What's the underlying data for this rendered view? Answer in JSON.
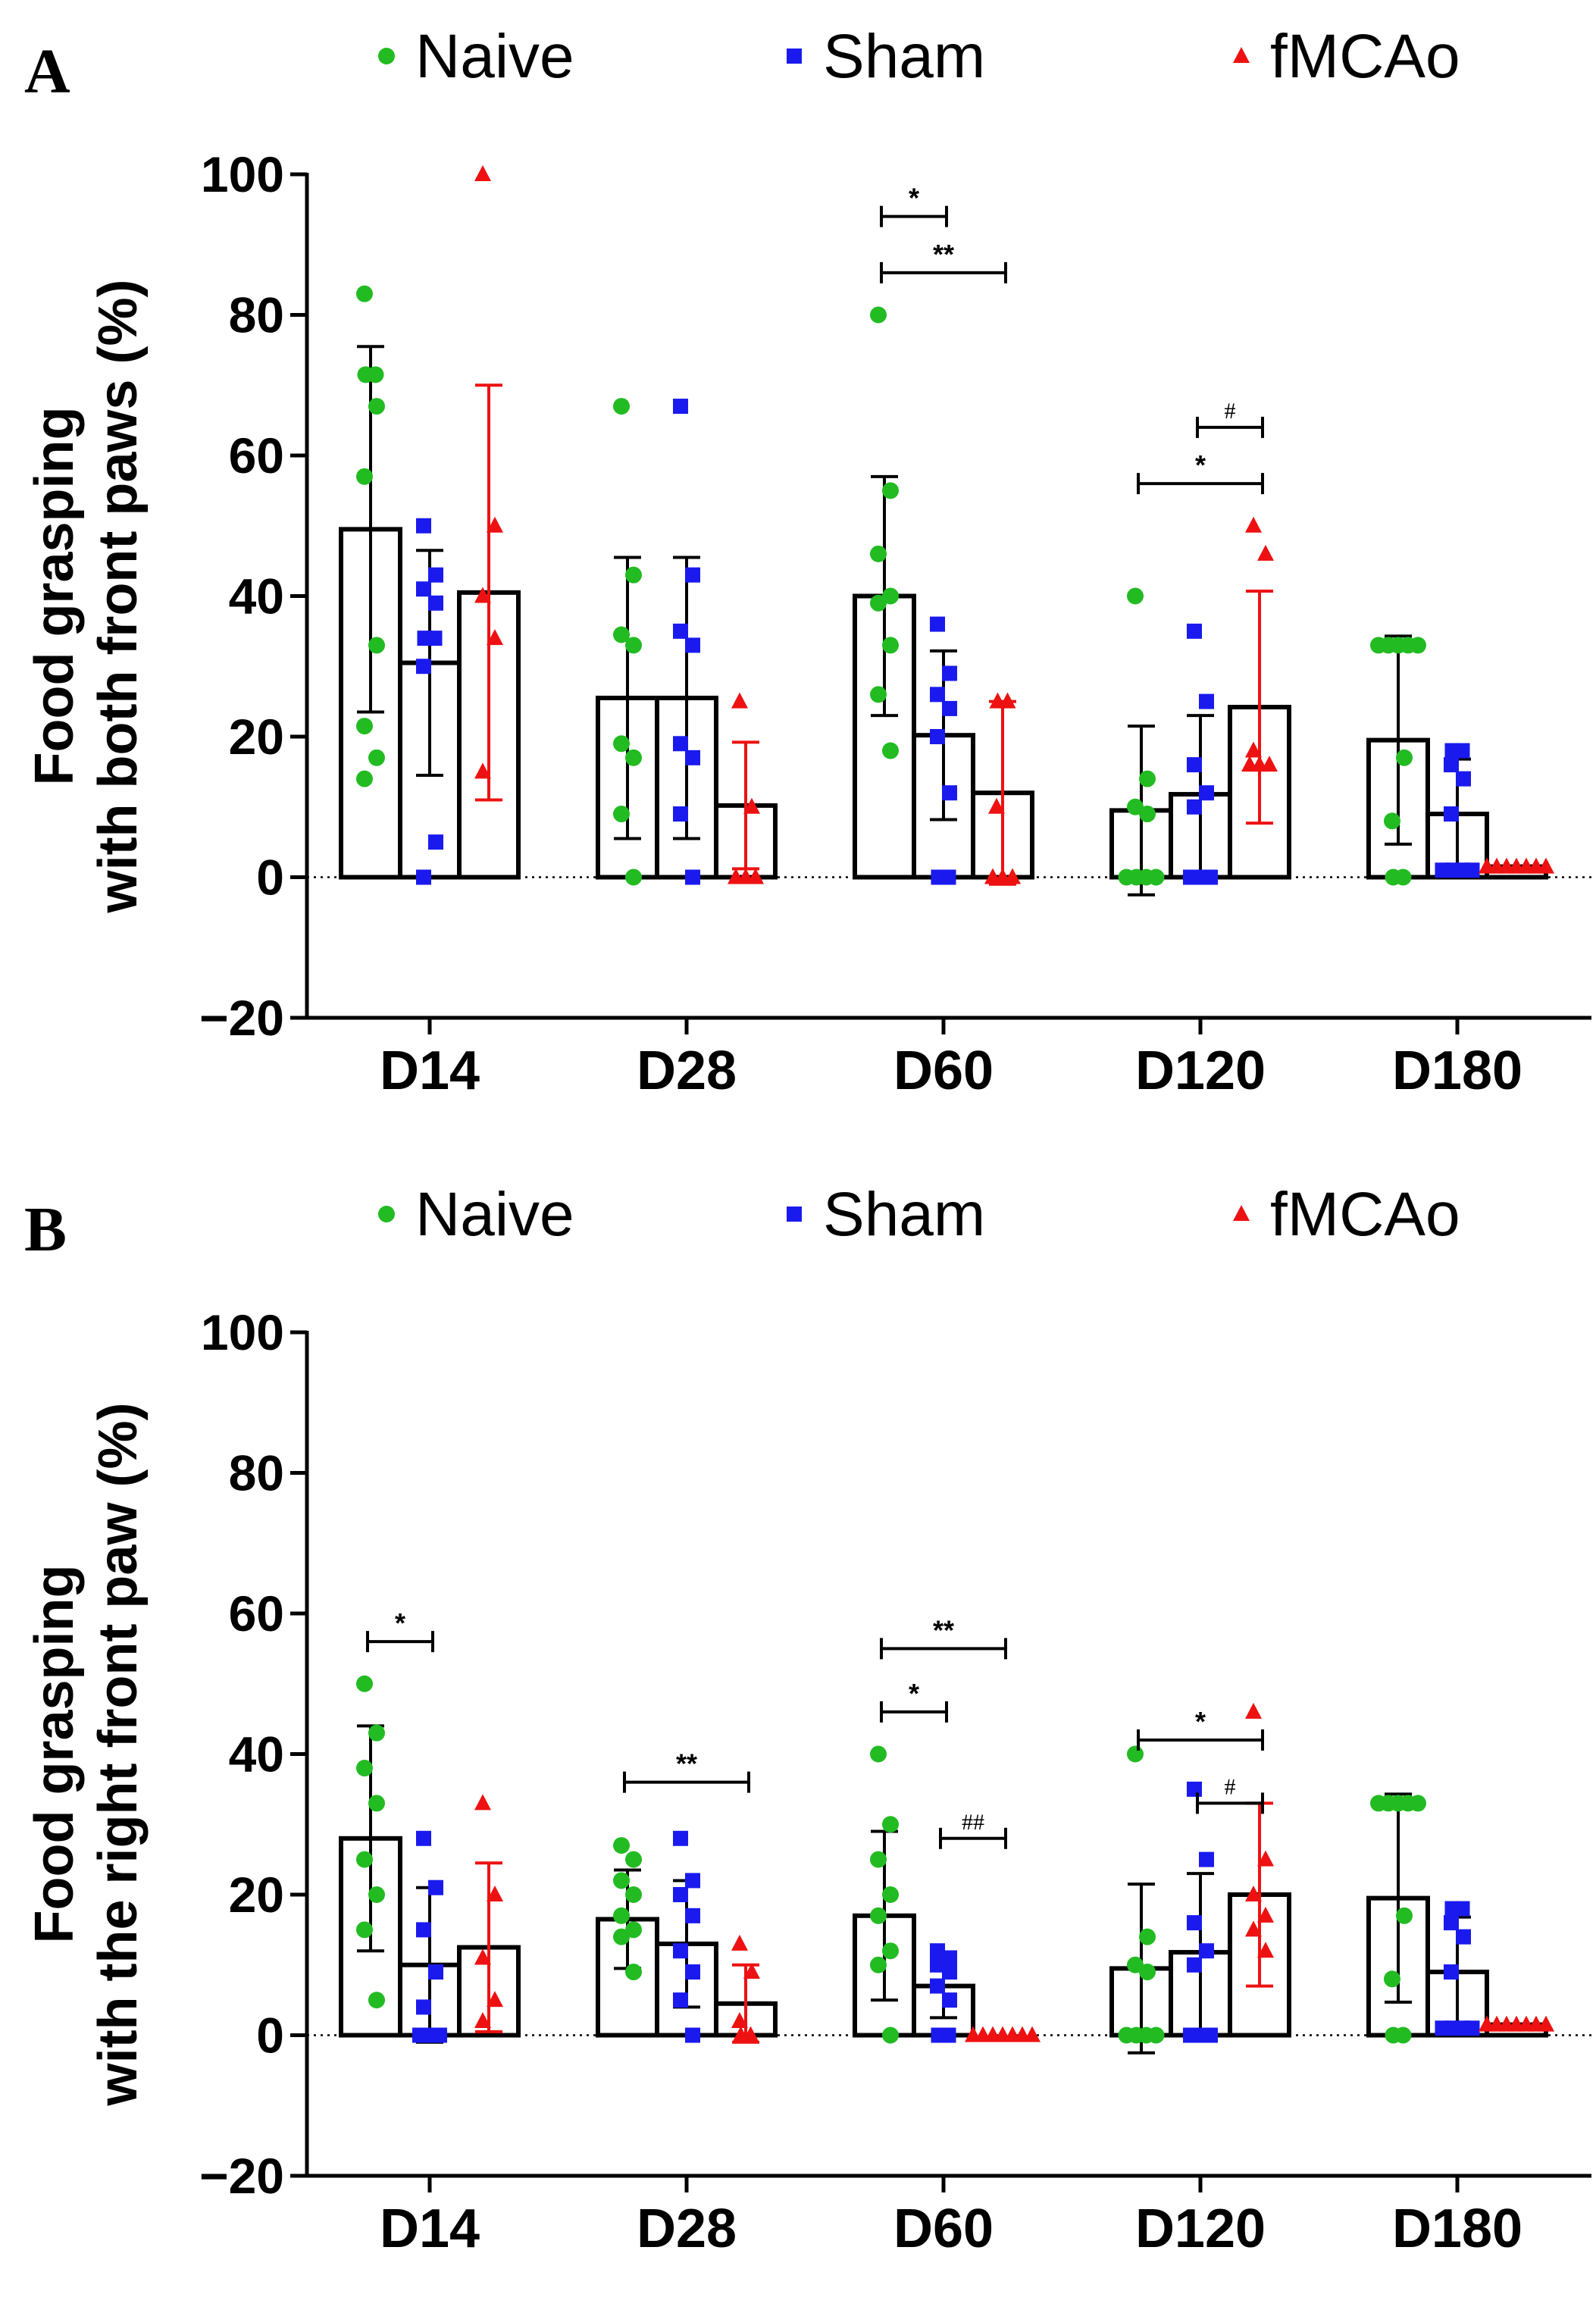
{
  "colors": {
    "naive": "#22bb22",
    "sham": "#1a1aee",
    "fmcao": "#ee1111",
    "axis": "#000000"
  },
  "legend": [
    {
      "name": "Naive",
      "color": "#22bb22",
      "marker": "circle"
    },
    {
      "name": "Sham",
      "color": "#1a1aee",
      "marker": "square"
    },
    {
      "name": "fMCAo",
      "color": "#ee1111",
      "marker": "triangle"
    }
  ],
  "chart_data": [
    {
      "panel_label": "A",
      "type": "bar",
      "title": "",
      "xlabel": "",
      "ylabel_line1": "Food grasping",
      "ylabel_line2": "with both front paws (%)",
      "ylim": [
        -20,
        100
      ],
      "yticks": [
        "100",
        "80",
        "60",
        "40",
        "20",
        "0",
        "−20"
      ],
      "ytick_values": [
        100,
        80,
        60,
        40,
        20,
        0,
        -20
      ],
      "categories": [
        "D14",
        "D28",
        "D60",
        "D120",
        "D180"
      ],
      "series": [
        {
          "name": "Naive",
          "means": [
            49.5,
            25.5,
            40,
            9.5,
            19.5
          ],
          "sd": [
            26,
            20,
            17,
            12,
            14.8
          ],
          "points": [
            [
              83,
              71.5,
              71.5,
              67,
              57,
              33,
              21.5,
              17,
              14
            ],
            [
              67,
              43,
              34.5,
              33,
              19,
              17,
              9,
              0
            ],
            [
              80,
              55,
              46,
              40,
              39,
              33,
              26,
              18
            ],
            [
              40,
              14,
              10,
              9,
              0,
              0,
              0,
              0
            ],
            [
              33,
              33,
              33,
              33,
              33,
              17,
              8,
              0,
              0
            ]
          ]
        },
        {
          "name": "Sham",
          "means": [
            30.5,
            25.5,
            20.2,
            11.8,
            9
          ],
          "sd": [
            16,
            20,
            12,
            11.2,
            7.8
          ],
          "points": [
            [
              50,
              43,
              41,
              39,
              34,
              34,
              30,
              5,
              0
            ],
            [
              67,
              43,
              35,
              33,
              19,
              17,
              9,
              0
            ],
            [
              36,
              29,
              26,
              24,
              20,
              12,
              0,
              0
            ],
            [
              35,
              25,
              16,
              12,
              10,
              0,
              0,
              0
            ],
            [
              18,
              18,
              16,
              14,
              9,
              1,
              1,
              1,
              1
            ]
          ]
        },
        {
          "name": "fMCAo",
          "means": [
            40.5,
            10.2,
            12,
            24.2,
            1.5
          ],
          "sd": [
            29.5,
            9,
            13,
            16.5,
            0
          ],
          "points": [
            [
              100,
              50,
              40,
              34,
              15
            ],
            [
              25,
              10,
              0,
              0,
              0
            ],
            [
              25,
              25,
              10,
              0,
              0,
              0
            ],
            [
              50,
              46,
              18,
              16,
              16,
              16
            ],
            [
              1.5,
              1.5,
              1.5,
              1.5,
              1.5,
              1.5,
              1.5
            ]
          ]
        }
      ],
      "significance": [
        {
          "group": "D60",
          "from": "Naive",
          "to": "Sham",
          "label": "*",
          "y": 94
        },
        {
          "group": "D60",
          "from": "Naive",
          "to": "fMCAo",
          "label": "**",
          "y": 86
        },
        {
          "group": "D120",
          "from": "Sham",
          "to": "fMCAo",
          "label": "#",
          "y": 64
        },
        {
          "group": "D120",
          "from": "Naive",
          "to": "fMCAo",
          "label": "*",
          "y": 56
        }
      ]
    },
    {
      "panel_label": "B",
      "type": "bar",
      "title": "",
      "xlabel": "",
      "ylabel_line1": "Food grasping",
      "ylabel_line2": "with the right front paw (%)",
      "ylim": [
        -20,
        100
      ],
      "yticks": [
        "100",
        "80",
        "60",
        "40",
        "20",
        "0",
        "−20"
      ],
      "ytick_values": [
        100,
        80,
        60,
        40,
        20,
        0,
        -20
      ],
      "categories": [
        "D14",
        "D28",
        "D60",
        "D120",
        "D180"
      ],
      "series": [
        {
          "name": "Naive",
          "means": [
            28,
            16.5,
            17,
            9.5,
            19.5
          ],
          "sd": [
            16,
            7,
            12,
            12,
            14.8
          ],
          "points": [
            [
              50,
              43,
              38,
              33,
              25,
              20,
              15,
              5
            ],
            [
              27,
              25,
              22,
              20,
              17,
              15,
              14,
              9
            ],
            [
              40,
              30,
              25,
              20,
              17,
              12,
              10,
              0
            ],
            [
              40,
              14,
              10,
              9,
              0,
              0,
              0,
              0
            ],
            [
              33,
              33,
              33,
              33,
              33,
              17,
              8,
              0,
              0
            ]
          ]
        },
        {
          "name": "Sham",
          "means": [
            10,
            13,
            7,
            11.8,
            9
          ],
          "sd": [
            11,
            9,
            4.5,
            11.2,
            7.8
          ],
          "points": [
            [
              28,
              21,
              15,
              9,
              4,
              0,
              0,
              0
            ],
            [
              28,
              22,
              20,
              17,
              12,
              9,
              5,
              0
            ],
            [
              12,
              11,
              10,
              9,
              7,
              5,
              0,
              0
            ],
            [
              35,
              25,
              16,
              12,
              10,
              0,
              0,
              0
            ],
            [
              18,
              18,
              16,
              14,
              9,
              1,
              1,
              1,
              1
            ]
          ]
        },
        {
          "name": "fMCAo",
          "means": [
            12.5,
            4.5,
            0,
            20,
            1.5
          ],
          "sd": [
            12,
            5.5,
            0,
            13,
            0
          ],
          "points": [
            [
              33,
              20,
              11,
              5,
              2
            ],
            [
              13,
              9,
              2,
              0,
              0
            ],
            [
              0,
              0,
              0,
              0,
              0,
              0,
              0
            ],
            [
              46,
              25,
              20,
              17,
              15,
              12
            ],
            [
              1.5,
              1.5,
              1.5,
              1.5,
              1.5,
              1.5,
              1.5
            ]
          ]
        }
      ],
      "significance": [
        {
          "group": "D14",
          "from": "Naive",
          "to": "Sham",
          "label": "*",
          "y": 56
        },
        {
          "group": "D28",
          "from": "Naive",
          "to": "fMCAo",
          "label": "**",
          "y": 36
        },
        {
          "group": "D60",
          "from": "Naive",
          "to": "fMCAo",
          "label": "**",
          "y": 55
        },
        {
          "group": "D60",
          "from": "Naive",
          "to": "Sham",
          "label": "*",
          "y": 46
        },
        {
          "group": "D60",
          "from": "Sham",
          "to": "fMCAo",
          "label": "##",
          "y": 28
        },
        {
          "group": "D120",
          "from": "Naive",
          "to": "fMCAo",
          "label": "*",
          "y": 42
        },
        {
          "group": "D120",
          "from": "Sham",
          "to": "fMCAo",
          "label": "#",
          "y": 33
        }
      ]
    }
  ]
}
